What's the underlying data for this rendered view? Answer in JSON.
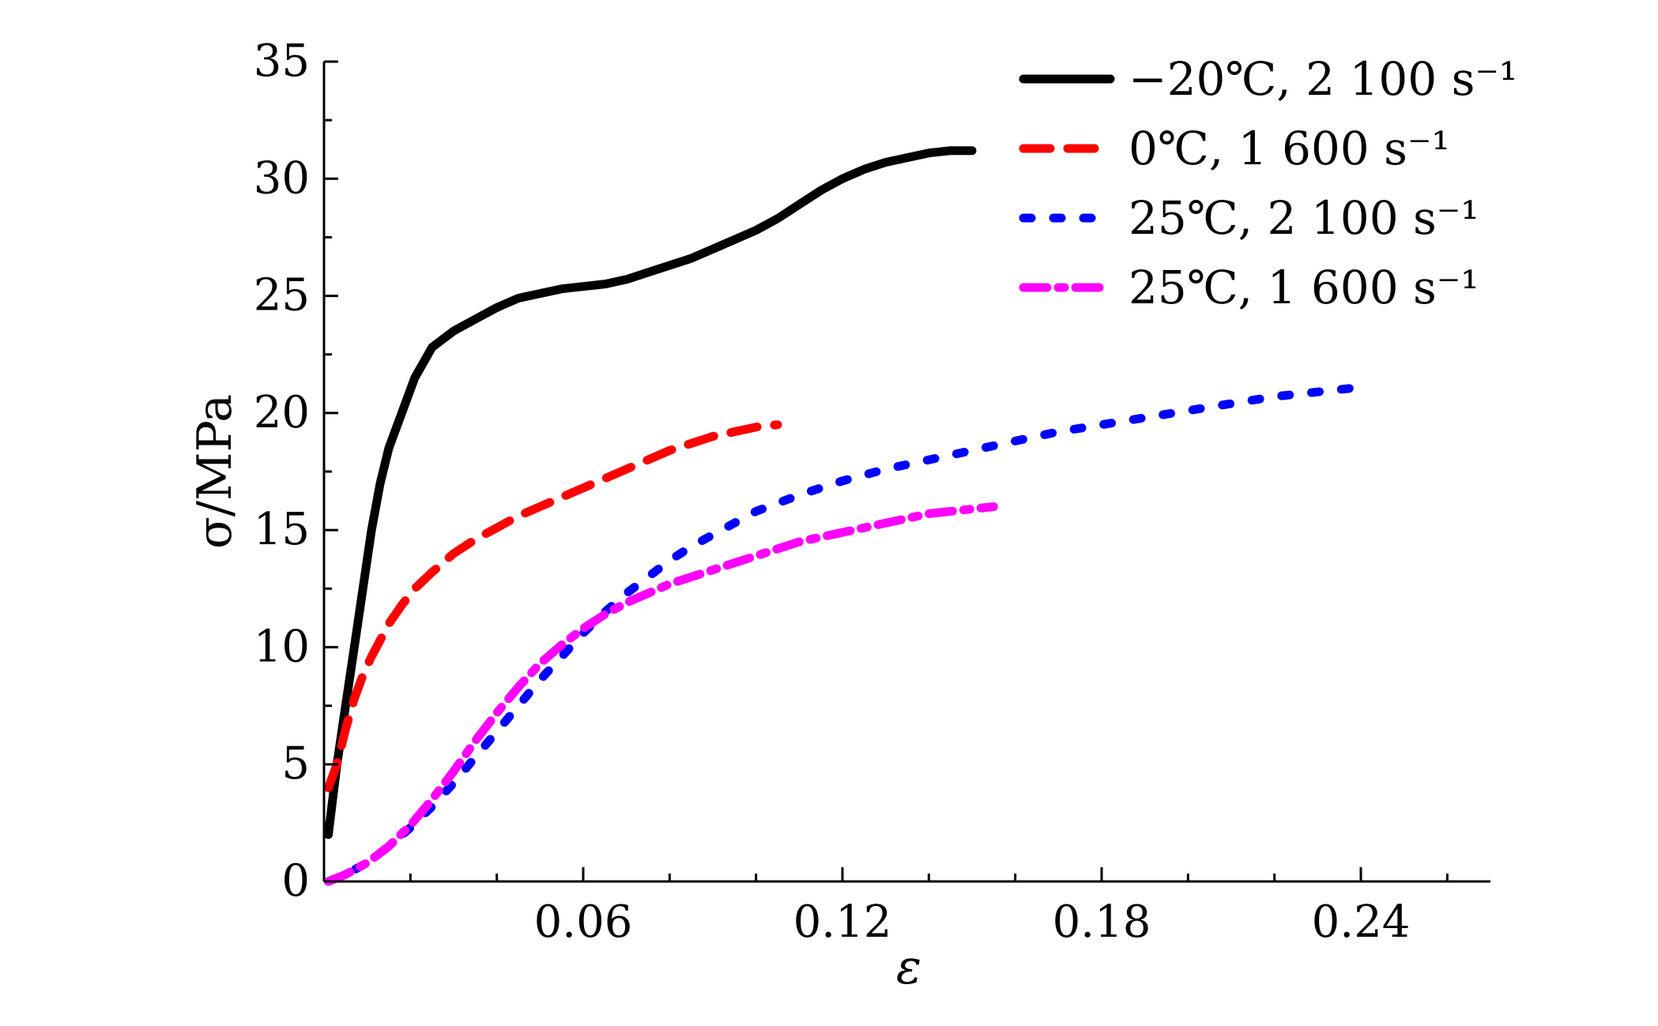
{
  "chart_data": {
    "type": "line",
    "title": "",
    "xlabel": "ε",
    "ylabel": "σ/MPa",
    "xlim": [
      0,
      0.27
    ],
    "ylim": [
      0,
      35
    ],
    "x_ticks": [
      {
        "value": 0.06,
        "label": "0.06"
      },
      {
        "value": 0.12,
        "label": "0.12"
      },
      {
        "value": 0.18,
        "label": "0.18"
      },
      {
        "value": 0.24,
        "label": "0.24"
      }
    ],
    "y_ticks": [
      {
        "value": 0,
        "label": "0"
      },
      {
        "value": 5,
        "label": "5"
      },
      {
        "value": 10,
        "label": "10"
      },
      {
        "value": 15,
        "label": "15"
      },
      {
        "value": 20,
        "label": "20"
      },
      {
        "value": 25,
        "label": "25"
      },
      {
        "value": 30,
        "label": "30"
      },
      {
        "value": 35,
        "label": "35"
      }
    ],
    "grid": false,
    "legend_position": "top-right",
    "series": [
      {
        "name": "−20℃, 2 100 s⁻¹",
        "color": "#000000",
        "line_style": "solid",
        "x": [
          0.001,
          0.002,
          0.003,
          0.005,
          0.007,
          0.009,
          0.011,
          0.013,
          0.015,
          0.018,
          0.021,
          0.025,
          0.03,
          0.035,
          0.04,
          0.045,
          0.05,
          0.055,
          0.06,
          0.065,
          0.07,
          0.075,
          0.08,
          0.085,
          0.09,
          0.095,
          0.1,
          0.105,
          0.11,
          0.115,
          0.12,
          0.125,
          0.13,
          0.135,
          0.14,
          0.145,
          0.15
        ],
        "y": [
          2.0,
          3.5,
          5.0,
          7.5,
          10.0,
          12.5,
          15.0,
          17.0,
          18.5,
          20.0,
          21.5,
          22.8,
          23.5,
          24.0,
          24.5,
          24.9,
          25.1,
          25.3,
          25.4,
          25.5,
          25.7,
          26.0,
          26.3,
          26.6,
          27.0,
          27.4,
          27.8,
          28.3,
          28.9,
          29.5,
          30.0,
          30.4,
          30.7,
          30.9,
          31.1,
          31.2,
          31.2
        ]
      },
      {
        "name": "0℃, 1 600 s⁻¹",
        "color": "#ff0000",
        "line_style": "dashed",
        "x": [
          0.001,
          0.003,
          0.005,
          0.007,
          0.009,
          0.011,
          0.013,
          0.015,
          0.018,
          0.021,
          0.025,
          0.03,
          0.035,
          0.04,
          0.045,
          0.05,
          0.055,
          0.06,
          0.065,
          0.07,
          0.075,
          0.08,
          0.085,
          0.09,
          0.095,
          0.1,
          0.105
        ],
        "y": [
          4.0,
          5.0,
          6.5,
          7.8,
          8.8,
          9.6,
          10.3,
          11.0,
          11.8,
          12.5,
          13.2,
          14.0,
          14.6,
          15.1,
          15.6,
          16.0,
          16.4,
          16.8,
          17.2,
          17.6,
          18.0,
          18.4,
          18.7,
          19.0,
          19.2,
          19.4,
          19.5
        ]
      },
      {
        "name": "25℃, 2 100 s⁻¹",
        "color": "#0000ff",
        "line_style": "dotted",
        "x": [
          0.001,
          0.005,
          0.01,
          0.015,
          0.02,
          0.025,
          0.03,
          0.035,
          0.04,
          0.045,
          0.05,
          0.055,
          0.06,
          0.065,
          0.07,
          0.075,
          0.08,
          0.085,
          0.09,
          0.095,
          0.1,
          0.11,
          0.12,
          0.13,
          0.14,
          0.15,
          0.16,
          0.17,
          0.18,
          0.19,
          0.2,
          0.21,
          0.22,
          0.23,
          0.24
        ],
        "y": [
          0.0,
          0.3,
          0.8,
          1.5,
          2.3,
          3.2,
          4.2,
          5.3,
          6.4,
          7.5,
          8.6,
          9.6,
          10.6,
          11.5,
          12.3,
          13.0,
          13.7,
          14.3,
          14.8,
          15.3,
          15.8,
          16.5,
          17.1,
          17.6,
          18.0,
          18.4,
          18.8,
          19.2,
          19.5,
          19.8,
          20.1,
          20.4,
          20.7,
          20.9,
          21.1
        ]
      },
      {
        "name": "25℃, 1 600 s⁻¹",
        "color": "#ff00ff",
        "line_style": "dash-dot",
        "x": [
          0.001,
          0.005,
          0.01,
          0.015,
          0.02,
          0.025,
          0.03,
          0.035,
          0.04,
          0.045,
          0.05,
          0.055,
          0.06,
          0.065,
          0.07,
          0.075,
          0.08,
          0.085,
          0.09,
          0.095,
          0.1,
          0.105,
          0.11,
          0.115,
          0.12,
          0.125,
          0.13,
          0.135,
          0.14,
          0.145,
          0.15,
          0.155
        ],
        "y": [
          0.0,
          0.3,
          0.8,
          1.5,
          2.4,
          3.5,
          4.7,
          6.0,
          7.2,
          8.3,
          9.3,
          10.1,
          10.8,
          11.4,
          11.9,
          12.3,
          12.7,
          13.0,
          13.3,
          13.6,
          13.9,
          14.2,
          14.5,
          14.7,
          14.9,
          15.1,
          15.3,
          15.5,
          15.7,
          15.8,
          15.9,
          16.0
        ]
      }
    ]
  }
}
